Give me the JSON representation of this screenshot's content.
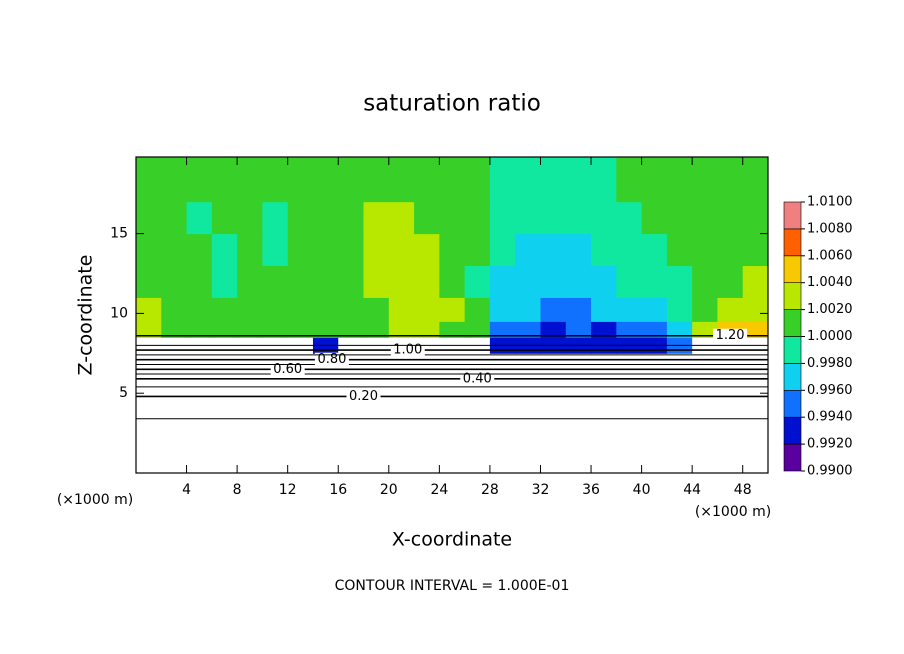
{
  "chart_data": {
    "type": "heatmap",
    "title": "saturation ratio",
    "x_label": "X-coordinate",
    "y_label": "Z-coordinate",
    "x_unit": "(×1000 m)",
    "footer": "CONTOUR INTERVAL = 1.000E-01",
    "xlim": [
      0,
      50
    ],
    "ylim": [
      0,
      19.8
    ],
    "xticks": [
      4,
      8,
      12,
      16,
      20,
      24,
      28,
      32,
      36,
      40,
      44,
      48
    ],
    "yticks": [
      5,
      10,
      15
    ],
    "x_edges": [
      0,
      2,
      4,
      6,
      8,
      10,
      12,
      14,
      16,
      18,
      20,
      22,
      24,
      26,
      28,
      30,
      32,
      34,
      36,
      38,
      40,
      42,
      44,
      46,
      48,
      50
    ],
    "y_edges": [
      0,
      7.5,
      8.5,
      9.5,
      11,
      13,
      15,
      17,
      19.8
    ],
    "values": [
      [
        0.5,
        0.5,
        0.5,
        0.5,
        0.5,
        0.5,
        0.5,
        0.5,
        0.5,
        0.5,
        0.5,
        0.5,
        0.5,
        0.5,
        0.5,
        0.5,
        0.5,
        0.5,
        0.5,
        0.5,
        0.5,
        0.5,
        0.5,
        0.5,
        0.5
      ],
      [
        1.05,
        1.05,
        1.05,
        1.05,
        1.05,
        1.05,
        1.05,
        0.993,
        1.05,
        1.05,
        1.05,
        1.05,
        1.05,
        1.05,
        0.993,
        0.992,
        0.993,
        0.992,
        0.993,
        0.992,
        0.993,
        0.994,
        1.05,
        1.05,
        1.05
      ],
      [
        1.003,
        1.001,
        1.001,
        1.001,
        1.0,
        1.0,
        1.001,
        1.001,
        1.001,
        1.001,
        1.002,
        1.002,
        1.001,
        1.001,
        0.994,
        0.995,
        0.993,
        0.994,
        0.993,
        0.994,
        0.995,
        0.996,
        1.003,
        1.004,
        1.005
      ],
      [
        1.002,
        1.001,
        1.0,
        1.0,
        1.0,
        1.0,
        1.001,
        1.001,
        1.001,
        1.001,
        1.002,
        1.002,
        1.002,
        1.001,
        0.996,
        0.996,
        0.995,
        0.995,
        0.996,
        0.996,
        0.997,
        0.998,
        1.001,
        1.002,
        1.003
      ],
      [
        1.001,
        1.001,
        1.0,
        0.9995,
        1.0,
        1.0,
        1.001,
        1.001,
        1.001,
        1.002,
        1.002,
        1.002,
        1.001,
        0.999,
        0.997,
        0.997,
        0.997,
        0.997,
        0.997,
        0.998,
        0.998,
        0.999,
        1.001,
        1.001,
        1.002
      ],
      [
        1.001,
        1.001,
        1.0,
        0.9995,
        1.0,
        0.9995,
        1.0,
        1.001,
        1.001,
        1.002,
        1.002,
        1.002,
        1.001,
        1.0,
        0.998,
        0.997,
        0.997,
        0.997,
        0.998,
        0.998,
        0.999,
        1.0,
        1.001,
        1.001,
        1.001
      ],
      [
        1.001,
        1.0,
        0.9995,
        1.0,
        1.0,
        0.9995,
        1.0,
        1.001,
        1.001,
        1.002,
        1.002,
        1.001,
        1.001,
        1.0,
        0.9985,
        0.998,
        0.9985,
        0.9985,
        0.999,
        0.9995,
        1.0,
        1.0,
        1.001,
        1.001,
        1.001
      ],
      [
        1.001,
        1.001,
        1.0,
        1.0,
        1.001,
        1.0,
        1.0,
        1.0,
        1.001,
        1.001,
        1.001,
        1.001,
        1.0,
        1.0,
        0.9995,
        0.999,
        0.999,
        0.9995,
        0.9995,
        1.0,
        1.0,
        1.001,
        1.001,
        1.001,
        1.001
      ]
    ],
    "colorbar": {
      "ticks": [
        {
          "value": 0.99,
          "label": "0.9900"
        },
        {
          "value": 0.992,
          "label": "0.9920"
        },
        {
          "value": 0.994,
          "label": "0.9940"
        },
        {
          "value": 0.996,
          "label": "0.9960"
        },
        {
          "value": 0.998,
          "label": "0.9980"
        },
        {
          "value": 1.0,
          "label": "1.0000"
        },
        {
          "value": 1.002,
          "label": "1.0020"
        },
        {
          "value": 1.004,
          "label": "1.0040"
        },
        {
          "value": 1.006,
          "label": "1.0060"
        },
        {
          "value": 1.008,
          "label": "1.0080"
        },
        {
          "value": 1.01,
          "label": "1.0100"
        }
      ],
      "colors": [
        "#5a00a0",
        "#0010d0",
        "#1070ff",
        "#10d0f0",
        "#10e8a0",
        "#38d028",
        "#b8e800",
        "#f8c800",
        "#ff6000",
        "#f08080"
      ]
    },
    "contours": [
      {
        "level": 0.1,
        "z": 3.4
      },
      {
        "level": 0.2,
        "label": "0.20",
        "z": 4.8
      },
      {
        "level": 0.3,
        "z": 5.4
      },
      {
        "level": 0.4,
        "label": "0.40",
        "z": 5.9
      },
      {
        "level": 0.5,
        "z": 6.2
      },
      {
        "level": 0.6,
        "label": "0.60",
        "z": 6.5
      },
      {
        "level": 0.7,
        "z": 6.8
      },
      {
        "level": 0.8,
        "label": "0.80",
        "z": 7.1
      },
      {
        "level": 0.9,
        "z": 7.4
      },
      {
        "level": 1.0,
        "label": "1.00",
        "z": 7.7
      },
      {
        "level": 1.1,
        "z": 8.0
      },
      {
        "level": 1.2,
        "label": "1.20",
        "z": 8.6
      }
    ]
  }
}
